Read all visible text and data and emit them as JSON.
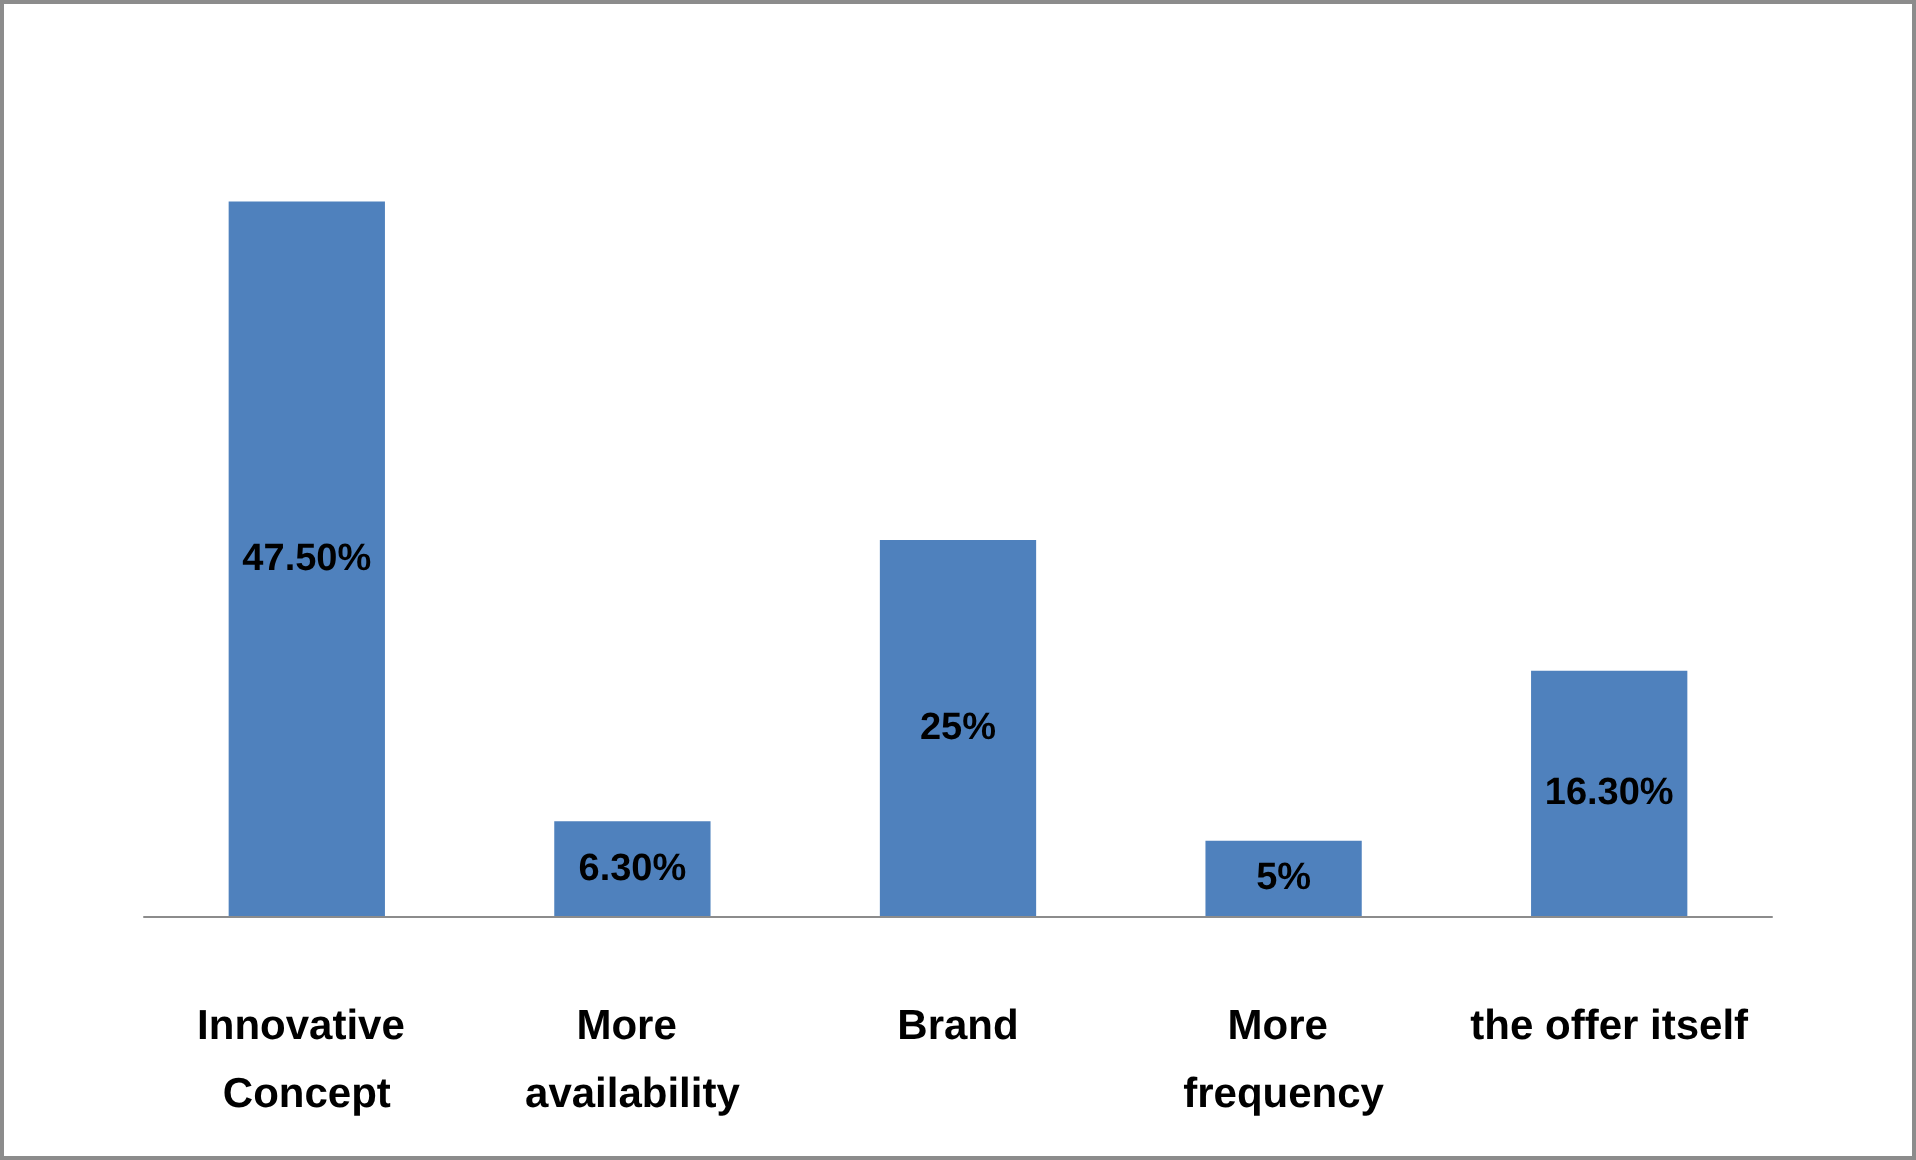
{
  "chart_data": {
    "type": "bar",
    "categories": [
      "Innovative Concept",
      "More availability",
      "Brand",
      "More frequency",
      "the offer itself"
    ],
    "values": [
      47.5,
      6.3,
      25,
      5,
      16.3
    ],
    "value_labels": [
      "47.50%",
      "6.30%",
      "25%",
      "5%",
      "16.30%"
    ],
    "color": "#4f81bd"
  }
}
